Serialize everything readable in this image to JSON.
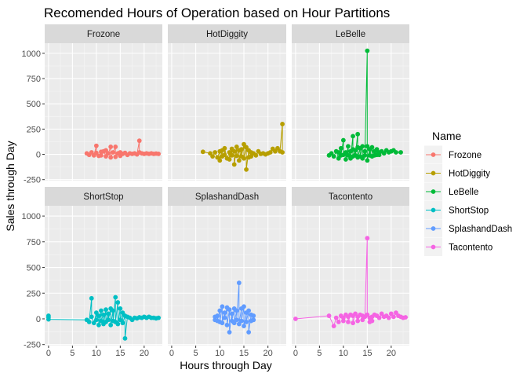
{
  "chart_data": {
    "type": "line",
    "title": "Recomended Hours of Operation based on Hour Partitions",
    "xlabel": "Hours through Day",
    "ylabel": "Sales through Day",
    "xlim": [
      -0.8,
      23.8
    ],
    "ylim": [
      -260,
      1100
    ],
    "x_ticks": [
      0,
      5,
      10,
      15,
      20
    ],
    "y_ticks": [
      -250,
      0,
      250,
      500,
      750,
      1000
    ],
    "grid": true,
    "legend": {
      "title": "Name",
      "placement": "right"
    },
    "series": [
      {
        "name": "Frozone",
        "color": "#F8766D",
        "points": [
          [
            8,
            10
          ],
          [
            8.5,
            -5
          ],
          [
            9,
            20
          ],
          [
            9.5,
            -10
          ],
          [
            10,
            85
          ],
          [
            10,
            15
          ],
          [
            10.5,
            -15
          ],
          [
            11,
            25
          ],
          [
            11,
            -10
          ],
          [
            11.5,
            30
          ],
          [
            12,
            -20
          ],
          [
            12,
            40
          ],
          [
            12.5,
            10
          ],
          [
            13,
            75
          ],
          [
            13,
            -30
          ],
          [
            13.5,
            20
          ],
          [
            14,
            75
          ],
          [
            14,
            -25
          ],
          [
            14.5,
            10
          ],
          [
            15,
            20
          ],
          [
            15,
            -15
          ],
          [
            15.5,
            5
          ],
          [
            16,
            15
          ],
          [
            16.5,
            -5
          ],
          [
            17,
            10
          ],
          [
            17.5,
            5
          ],
          [
            18,
            10
          ],
          [
            18.5,
            0
          ],
          [
            19,
            135
          ],
          [
            19,
            20
          ],
          [
            19.5,
            10
          ],
          [
            20,
            5
          ],
          [
            20.5,
            10
          ],
          [
            21,
            5
          ],
          [
            21.5,
            10
          ],
          [
            22,
            5
          ],
          [
            22.5,
            8
          ],
          [
            23,
            5
          ]
        ]
      },
      {
        "name": "HotDiggity",
        "color": "#B79F00",
        "points": [
          [
            6.5,
            25
          ],
          [
            8,
            10
          ],
          [
            8.5,
            -20
          ],
          [
            9,
            20
          ],
          [
            9.5,
            -30
          ],
          [
            10,
            30
          ],
          [
            10,
            -60
          ],
          [
            10.5,
            40
          ],
          [
            10.5,
            -20
          ],
          [
            11,
            -5
          ],
          [
            11,
            60
          ],
          [
            11.5,
            -40
          ],
          [
            12,
            20
          ],
          [
            12,
            -50
          ],
          [
            12.5,
            55
          ],
          [
            12.5,
            -10
          ],
          [
            13,
            30
          ],
          [
            13,
            -100
          ],
          [
            13.5,
            75
          ],
          [
            13.5,
            -15
          ],
          [
            14,
            40
          ],
          [
            14,
            -60
          ],
          [
            14.5,
            50
          ],
          [
            14.5,
            -20
          ],
          [
            15,
            100
          ],
          [
            15,
            -40
          ],
          [
            15.5,
            70
          ],
          [
            15.5,
            -150
          ],
          [
            16,
            40
          ],
          [
            16,
            -30
          ],
          [
            16.5,
            20
          ],
          [
            16.5,
            -20
          ],
          [
            17,
            10
          ],
          [
            17.5,
            -10
          ],
          [
            18,
            30
          ],
          [
            18.5,
            5
          ],
          [
            19,
            10
          ],
          [
            19.5,
            0
          ],
          [
            20,
            10
          ],
          [
            20.5,
            20
          ],
          [
            21,
            55
          ],
          [
            21.5,
            30
          ],
          [
            22,
            60
          ],
          [
            22.5,
            30
          ],
          [
            23,
            300
          ],
          [
            23,
            20
          ]
        ]
      },
      {
        "name": "LeBelle",
        "color": "#00BA38",
        "points": [
          [
            7,
            -10
          ],
          [
            7.5,
            10
          ],
          [
            8,
            -20
          ],
          [
            8.5,
            30
          ],
          [
            9,
            -40
          ],
          [
            9,
            20
          ],
          [
            9.5,
            60
          ],
          [
            9.5,
            -10
          ],
          [
            10,
            140
          ],
          [
            10,
            -5
          ],
          [
            10.5,
            20
          ],
          [
            10.5,
            -50
          ],
          [
            11,
            80
          ],
          [
            11,
            -10
          ],
          [
            11.5,
            30
          ],
          [
            11.5,
            -40
          ],
          [
            12,
            180
          ],
          [
            12,
            50
          ],
          [
            12,
            -20
          ],
          [
            12.5,
            40
          ],
          [
            12.5,
            -10
          ],
          [
            13,
            200
          ],
          [
            13,
            70
          ],
          [
            13,
            -30
          ],
          [
            13.5,
            60
          ],
          [
            13.5,
            -20
          ],
          [
            14,
            80
          ],
          [
            14,
            -40
          ],
          [
            14.5,
            30
          ],
          [
            14.5,
            -10
          ],
          [
            15,
            1025
          ],
          [
            15,
            80
          ],
          [
            15,
            -60
          ],
          [
            15.5,
            50
          ],
          [
            15.5,
            -10
          ],
          [
            16,
            70
          ],
          [
            16,
            -20
          ],
          [
            16.5,
            30
          ],
          [
            16.5,
            -10
          ],
          [
            17,
            50
          ],
          [
            17,
            -5
          ],
          [
            17.5,
            20
          ],
          [
            17.5,
            -5
          ],
          [
            18,
            30
          ],
          [
            18.5,
            10
          ],
          [
            19,
            40
          ],
          [
            19.5,
            20
          ],
          [
            20,
            30
          ],
          [
            20.5,
            40
          ],
          [
            21,
            20
          ],
          [
            22,
            20
          ]
        ]
      },
      {
        "name": "ShortStop",
        "color": "#00BFC4",
        "points": [
          [
            0,
            30
          ],
          [
            0,
            15
          ],
          [
            0,
            -5
          ],
          [
            8,
            -10
          ],
          [
            8.5,
            -30
          ],
          [
            9,
            200
          ],
          [
            9,
            20
          ],
          [
            9.5,
            -40
          ],
          [
            10,
            60
          ],
          [
            10,
            -10
          ],
          [
            10.5,
            30
          ],
          [
            10.5,
            -60
          ],
          [
            11,
            80
          ],
          [
            11,
            -20
          ],
          [
            11.5,
            40
          ],
          [
            11.5,
            -50
          ],
          [
            12,
            90
          ],
          [
            12,
            -30
          ],
          [
            12.5,
            50
          ],
          [
            12.5,
            -10
          ],
          [
            13,
            100
          ],
          [
            13,
            -60
          ],
          [
            13.5,
            80
          ],
          [
            13.5,
            -20
          ],
          [
            14,
            210
          ],
          [
            14,
            -30
          ],
          [
            14.5,
            160
          ],
          [
            14.5,
            -50
          ],
          [
            15,
            100
          ],
          [
            15,
            -10
          ],
          [
            15.5,
            60
          ],
          [
            15.5,
            -40
          ],
          [
            16,
            30
          ],
          [
            16,
            -190
          ],
          [
            16.5,
            20
          ],
          [
            17,
            10
          ],
          [
            17.5,
            -10
          ],
          [
            18,
            10
          ],
          [
            18.5,
            5
          ],
          [
            19,
            15
          ],
          [
            19.5,
            10
          ],
          [
            20,
            20
          ],
          [
            20.5,
            10
          ],
          [
            21,
            20
          ],
          [
            21.5,
            10
          ],
          [
            22,
            10
          ],
          [
            22.5,
            5
          ],
          [
            23,
            10
          ]
        ]
      },
      {
        "name": "SplashandDash",
        "color": "#619CFF",
        "points": [
          [
            9,
            20
          ],
          [
            9,
            -10
          ],
          [
            9.5,
            30
          ],
          [
            9.5,
            -20
          ],
          [
            10,
            80
          ],
          [
            10,
            -30
          ],
          [
            10.5,
            120
          ],
          [
            10.5,
            -40
          ],
          [
            11,
            60
          ],
          [
            11,
            10
          ],
          [
            11.5,
            110
          ],
          [
            11.5,
            -60
          ],
          [
            12,
            90
          ],
          [
            12,
            -130
          ],
          [
            12.5,
            50
          ],
          [
            12.5,
            -20
          ],
          [
            13,
            100
          ],
          [
            13,
            -40
          ],
          [
            13.5,
            80
          ],
          [
            13.5,
            -10
          ],
          [
            14,
            350
          ],
          [
            14,
            -50
          ],
          [
            14.5,
            100
          ],
          [
            14.5,
            -20
          ],
          [
            15,
            120
          ],
          [
            15,
            -70
          ],
          [
            15.5,
            60
          ],
          [
            15.5,
            -30
          ],
          [
            16,
            80
          ],
          [
            16,
            -130
          ],
          [
            16.5,
            40
          ],
          [
            16.5,
            -20
          ],
          [
            17,
            30
          ],
          [
            17,
            -10
          ]
        ]
      },
      {
        "name": "Tacontento",
        "color": "#F564E3",
        "points": [
          [
            0,
            0
          ],
          [
            7,
            30
          ],
          [
            8,
            -70
          ],
          [
            8.5,
            10
          ],
          [
            9,
            -30
          ],
          [
            9.5,
            30
          ],
          [
            10,
            10
          ],
          [
            10,
            -20
          ],
          [
            10.5,
            40
          ],
          [
            11,
            20
          ],
          [
            11,
            -30
          ],
          [
            11.5,
            40
          ],
          [
            12,
            30
          ],
          [
            12,
            -40
          ],
          [
            12.5,
            50
          ],
          [
            13,
            20
          ],
          [
            13,
            -20
          ],
          [
            13.5,
            40
          ],
          [
            14,
            30
          ],
          [
            14,
            -10
          ],
          [
            14.5,
            20
          ],
          [
            15,
            785
          ],
          [
            15,
            40
          ],
          [
            15.5,
            -30
          ],
          [
            15.5,
            10
          ],
          [
            16,
            20
          ],
          [
            16,
            -20
          ],
          [
            16.5,
            40
          ],
          [
            17,
            30
          ],
          [
            17.5,
            10
          ],
          [
            18,
            50
          ],
          [
            18.5,
            20
          ],
          [
            19,
            30
          ],
          [
            19.5,
            10
          ],
          [
            20,
            50
          ],
          [
            20.5,
            20
          ],
          [
            21,
            60
          ],
          [
            21.5,
            30
          ],
          [
            22,
            20
          ],
          [
            22.5,
            10
          ],
          [
            23,
            15
          ]
        ]
      }
    ]
  }
}
